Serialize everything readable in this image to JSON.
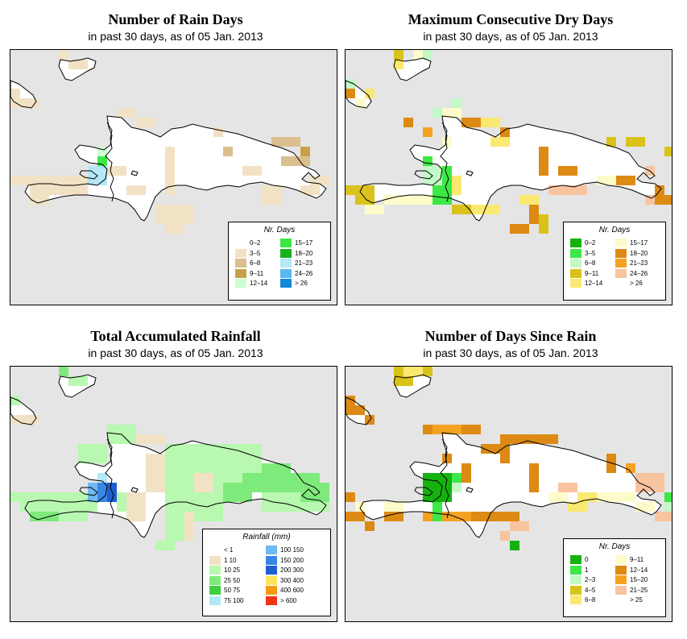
{
  "colors": {
    "ocean": "#e5e5e5",
    "land": "#ffffff"
  },
  "panels": [
    {
      "title": "Number of Rain Days",
      "subtitle": "in past 30 days, as of  05 Jan. 2013",
      "legend": {
        "title": "Nr. Days",
        "items": [
          {
            "label": "0–2",
            "color": "#ffffff"
          },
          {
            "label": "3–5",
            "color": "#f2e2c5"
          },
          {
            "label": "6–8",
            "color": "#dbbf8e"
          },
          {
            "label": "9–11",
            "color": "#c9a04a"
          },
          {
            "label": "12–14",
            "color": "#cdfcd0"
          },
          {
            "label": "15–17",
            "color": "#3ce846"
          },
          {
            "label": "18–20",
            "color": "#18b21e"
          },
          {
            "label": "21–23",
            "color": "#b3e8f5"
          },
          {
            "label": "24–26",
            "color": "#59b7ef"
          },
          {
            "label": "> 26",
            "color": "#1387d9"
          }
        ]
      }
    },
    {
      "title": "Maximum Consecutive Dry Days",
      "subtitle": "in past 30 days, as of  05 Jan. 2013",
      "legend": {
        "title": "Nr. Days",
        "items": [
          {
            "label": "0–2",
            "color": "#15b20f"
          },
          {
            "label": "3–5",
            "color": "#3ce846"
          },
          {
            "label": "6–8",
            "color": "#c3f8c7"
          },
          {
            "label": "9–11",
            "color": "#d9c31b"
          },
          {
            "label": "12–14",
            "color": "#fbe871"
          },
          {
            "label": "15–17",
            "color": "#fdfbc9"
          },
          {
            "label": "18–20",
            "color": "#dc8a14"
          },
          {
            "label": "21–23",
            "color": "#f5a223"
          },
          {
            "label": "24–26",
            "color": "#f8c4a0"
          },
          {
            "label": "> 26",
            "color": "#ffffff"
          }
        ]
      }
    },
    {
      "title": "Total Accumulated Rainfall",
      "subtitle": "in past 30 days, as of  05 Jan. 2013",
      "legend": {
        "title": "Rainfall (mm)",
        "items": [
          {
            "label": "< 1",
            "color": "#ffffff"
          },
          {
            "label": "1    10",
            "color": "#f2e2c5"
          },
          {
            "label": "10    25",
            "color": "#b8f8b0"
          },
          {
            "label": "25    50",
            "color": "#7fea7c"
          },
          {
            "label": "50    75",
            "color": "#3fcf3f"
          },
          {
            "label": "75  100",
            "color": "#b3e8f5"
          },
          {
            "label": "100  150",
            "color": "#6fb9f0"
          },
          {
            "label": "150  200",
            "color": "#3a86e8"
          },
          {
            "label": "200  300",
            "color": "#1f5fd0"
          },
          {
            "label": "300  400",
            "color": "#fbe35c"
          },
          {
            "label": "400  600",
            "color": "#f59a16"
          },
          {
            "label": "> 600",
            "color": "#f03414"
          }
        ]
      }
    },
    {
      "title": "Number of Days Since Rain",
      "subtitle": "in past 30 days, as of  05 Jan. 2013",
      "legend": {
        "title": "Nr. Days",
        "items": [
          {
            "label": "0",
            "color": "#15b20f"
          },
          {
            "label": "1",
            "color": "#3ce846"
          },
          {
            "label": "2–3",
            "color": "#c3f8c7"
          },
          {
            "label": "4–5",
            "color": "#d9c31b"
          },
          {
            "label": "6–8",
            "color": "#fbe871"
          },
          {
            "label": "9–11",
            "color": "#fdfbc9"
          },
          {
            "label": "12–14",
            "color": "#dc8a14"
          },
          {
            "label": "15–20",
            "color": "#f5a223"
          },
          {
            "label": "21–25",
            "color": "#f8c4a0"
          },
          {
            "label": "> 25",
            "color": "#ffffff"
          }
        ]
      }
    }
  ]
}
